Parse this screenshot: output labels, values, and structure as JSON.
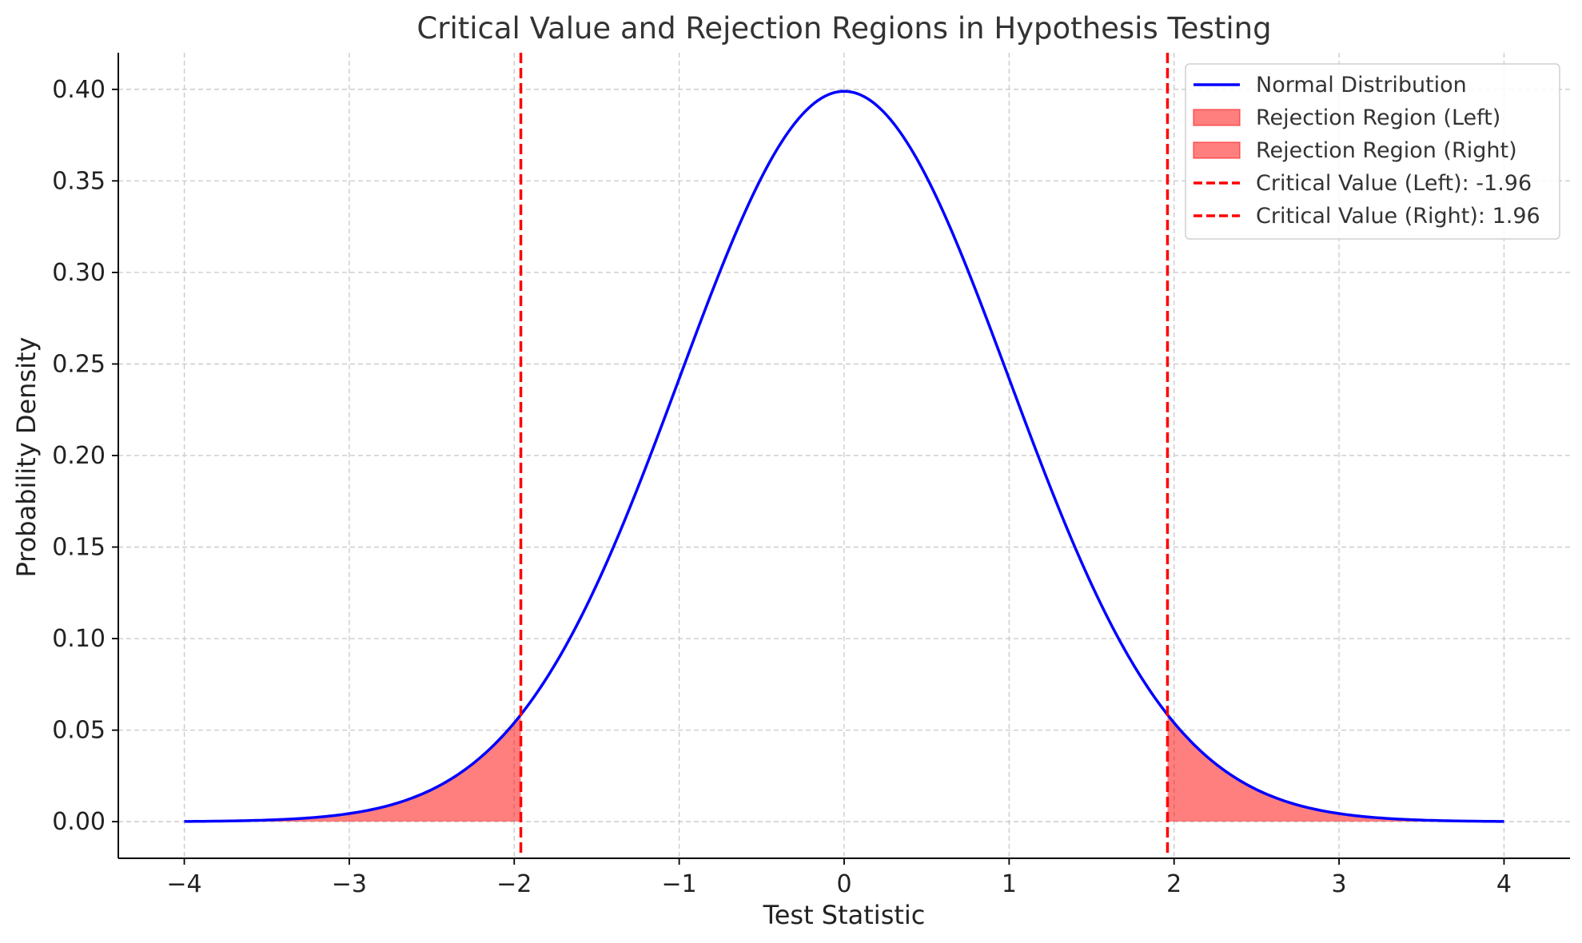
{
  "chart_data": {
    "type": "area",
    "title": "Critical Value and Rejection Regions in Hypothesis Testing",
    "xlabel": "Test Statistic",
    "ylabel": "Probability Density",
    "xlim": [
      -4.4,
      4.4
    ],
    "ylim": [
      -0.02,
      0.42
    ],
    "x_ticks": [
      -4,
      -3,
      -2,
      -1,
      0,
      1,
      2,
      3,
      4
    ],
    "x_tick_labels": [
      "−4",
      "−3",
      "−2",
      "−1",
      "0",
      "1",
      "2",
      "3",
      "4"
    ],
    "y_ticks": [
      0.0,
      0.05,
      0.1,
      0.15,
      0.2,
      0.25,
      0.3,
      0.35,
      0.4
    ],
    "y_tick_labels": [
      "0.00",
      "0.05",
      "0.10",
      "0.15",
      "0.20",
      "0.25",
      "0.30",
      "0.35",
      "0.40"
    ],
    "grid": true,
    "legend_position": "top-right",
    "series": [
      {
        "name": "Normal Distribution",
        "kind": "line",
        "color": "#0000ff",
        "x": [
          -4.0,
          -3.5,
          -3.0,
          -2.5,
          -2.0,
          -1.5,
          -1.0,
          -0.5,
          0.0,
          0.5,
          1.0,
          1.5,
          2.0,
          2.5,
          3.0,
          3.5,
          4.0
        ],
        "y": [
          0.0001,
          0.0009,
          0.0044,
          0.0175,
          0.054,
          0.1295,
          0.242,
          0.3521,
          0.3989,
          0.3521,
          0.242,
          0.1295,
          0.054,
          0.0175,
          0.0044,
          0.0009,
          0.0001
        ]
      },
      {
        "name": "Rejection Region (Left)",
        "kind": "fill",
        "color": "#ff0000",
        "opacity": 0.5,
        "x": [
          -4.0,
          -3.5,
          -3.0,
          -2.5,
          -2.0,
          -1.96
        ],
        "y": [
          0.0001,
          0.0009,
          0.0044,
          0.0175,
          0.054,
          0.0584
        ]
      },
      {
        "name": "Rejection Region (Right)",
        "kind": "fill",
        "color": "#ff0000",
        "opacity": 0.5,
        "x": [
          1.96,
          2.0,
          2.5,
          3.0,
          3.5,
          4.0
        ],
        "y": [
          0.0584,
          0.054,
          0.0175,
          0.0044,
          0.0009,
          0.0001
        ]
      },
      {
        "name": "Critical Value (Left): -1.96",
        "kind": "vline",
        "color": "#ff0000",
        "x": -1.96
      },
      {
        "name": "Critical Value (Right): 1.96",
        "kind": "vline",
        "color": "#ff0000",
        "x": 1.96
      }
    ]
  }
}
